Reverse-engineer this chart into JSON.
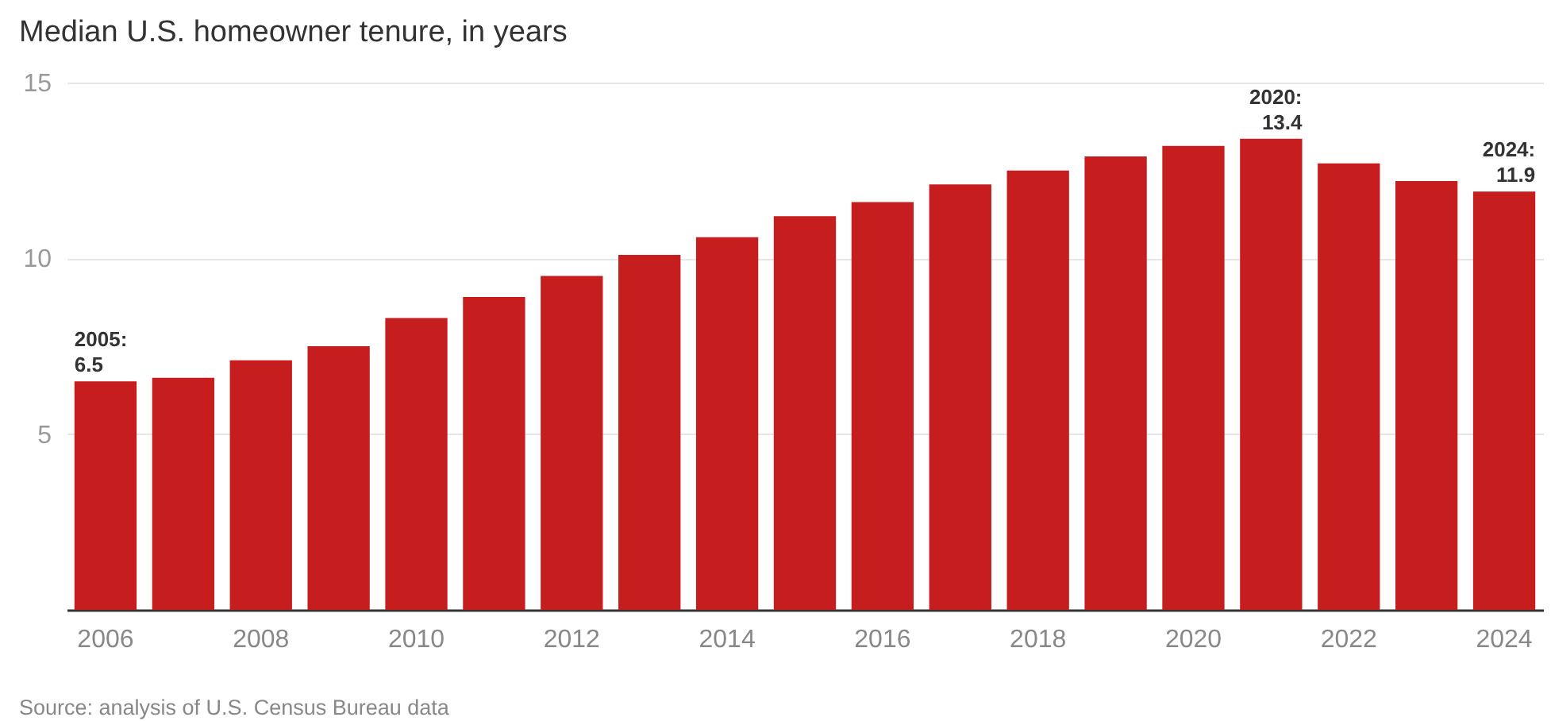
{
  "chart_data": {
    "type": "bar",
    "title": "Median U.S. homeowner tenure, in years",
    "categories": [
      "2006",
      null,
      "2008",
      null,
      "2010",
      null,
      "2012",
      null,
      "2014",
      null,
      "2016",
      null,
      "2018",
      null,
      "2020",
      null,
      "2022",
      null,
      "2024"
    ],
    "values": [
      6.5,
      6.6,
      7.1,
      7.5,
      8.3,
      8.9,
      9.5,
      10.1,
      10.6,
      11.2,
      11.6,
      12.1,
      12.5,
      12.9,
      13.2,
      13.4,
      12.7,
      12.2,
      11.9
    ],
    "color": "#c61d1f",
    "ylim": [
      0,
      15
    ],
    "yticks": [
      5,
      10,
      15
    ],
    "grid": "y",
    "annotations": [
      {
        "text": "2005:\n6.5",
        "y": 6.5
      },
      {
        "text": "2020:\n13.4",
        "y": 13.4
      },
      {
        "text": "2024:\n11.9",
        "y": 11.9
      },
      "Source: analysis of U.S. Census Bureau data"
    ]
  }
}
